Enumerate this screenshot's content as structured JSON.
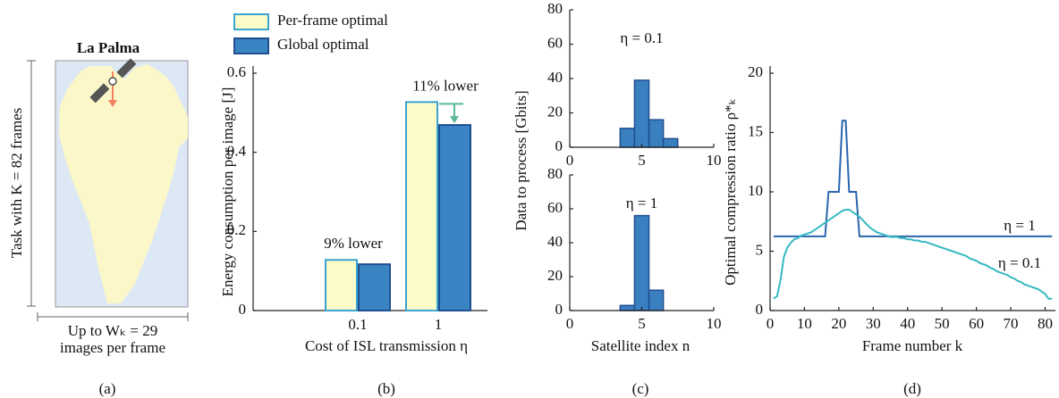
{
  "chart_data": [
    {
      "type": "map",
      "title": "La Palma",
      "y_label": "Task with K = 82 frames",
      "x_label": [
        "Up to Wₖ = 29",
        "images per frame"
      ],
      "caption": "(a)"
    },
    {
      "type": "bar",
      "categories": [
        "0.1",
        "1"
      ],
      "series": [
        {
          "name": "Per-frame optimal",
          "color": "#fdfcc8",
          "edge_color": "#3aa3cf",
          "values": [
            0.128,
            0.527
          ]
        },
        {
          "name": "Global optimal",
          "color": "#3a84c4",
          "edge_color": "#1f4f8f",
          "values": [
            0.117,
            0.469
          ]
        }
      ],
      "annotations": [
        "9% lower",
        "11% lower"
      ],
      "ylim": [
        0,
        0.6
      ],
      "yticks": [
        0,
        0.2,
        0.4,
        0.6
      ],
      "y_label": "Energy consumption per image [J]",
      "x_label": "Cost of ISL transmission η",
      "caption": "(b)"
    },
    {
      "type": "histogram",
      "color": "#3a7fc0",
      "edge_color": "#1f4f8f",
      "subplots": [
        {
          "title": "η = 0.1",
          "bins": [
            3.5,
            4.5,
            5.5,
            6.5,
            7.5
          ],
          "counts": [
            11,
            39,
            16,
            5
          ]
        },
        {
          "title": "η = 1",
          "bins": [
            3.5,
            4.5,
            5.5,
            6.5
          ],
          "counts": [
            3,
            56,
            12
          ]
        }
      ],
      "xlim": [
        0,
        10
      ],
      "xticks": [
        0,
        5,
        10
      ],
      "ylim": [
        0,
        80
      ],
      "yticks": [
        0,
        20,
        40,
        60,
        80
      ],
      "y_label": "Data to process [Gbits]",
      "x_label": "Satellite index n",
      "caption": "(c)"
    },
    {
      "type": "line",
      "x": [
        1,
        2,
        3,
        4,
        5,
        6,
        7,
        8,
        9,
        10,
        11,
        12,
        13,
        14,
        15,
        16,
        17,
        18,
        19,
        20,
        21,
        22,
        23,
        24,
        25,
        26,
        27,
        28,
        29,
        30,
        31,
        32,
        33,
        34,
        35,
        36,
        37,
        38,
        39,
        40,
        41,
        42,
        43,
        44,
        45,
        46,
        47,
        48,
        49,
        50,
        51,
        52,
        53,
        54,
        55,
        56,
        57,
        58,
        59,
        60,
        61,
        62,
        63,
        64,
        65,
        66,
        67,
        68,
        69,
        70,
        71,
        72,
        73,
        74,
        75,
        76,
        77,
        78,
        79,
        80,
        81,
        82
      ],
      "series": [
        {
          "name": "η = 1",
          "color": "#2a66ad",
          "values": [
            6.25,
            6.25,
            6.25,
            6.25,
            6.25,
            6.25,
            6.25,
            6.25,
            6.25,
            6.25,
            6.25,
            6.25,
            6.25,
            6.25,
            6.25,
            6.25,
            10,
            10,
            10,
            10,
            16,
            16,
            10,
            10,
            10,
            6.25,
            6.25,
            6.25,
            6.25,
            6.25,
            6.25,
            6.25,
            6.25,
            6.25,
            6.25,
            6.25,
            6.25,
            6.25,
            6.25,
            6.25,
            6.25,
            6.25,
            6.25,
            6.25,
            6.25,
            6.25,
            6.25,
            6.25,
            6.25,
            6.25,
            6.25,
            6.25,
            6.25,
            6.25,
            6.25,
            6.25,
            6.25,
            6.25,
            6.25,
            6.25,
            6.25,
            6.25,
            6.25,
            6.25,
            6.25,
            6.25,
            6.25,
            6.25,
            6.25,
            6.25,
            6.25,
            6.25,
            6.25,
            6.25,
            6.25,
            6.25,
            6.25,
            6.25,
            6.25,
            6.25,
            6.25,
            6.25
          ]
        },
        {
          "name": "η = 0.1",
          "color": "#35b9c2",
          "values": [
            1,
            1.2,
            2.5,
            4.5,
            5.3,
            5.7,
            6.0,
            6.1,
            6.3,
            6.4,
            6.5,
            6.6,
            6.8,
            7.0,
            7.2,
            7.4,
            7.6,
            7.8,
            8.0,
            8.2,
            8.4,
            8.5,
            8.5,
            8.3,
            8.1,
            7.9,
            7.6,
            7.3,
            7.0,
            6.8,
            6.6,
            6.5,
            6.4,
            6.3,
            6.2,
            6.2,
            6.2,
            6.1,
            6.1,
            6.0,
            6.0,
            5.9,
            5.9,
            5.8,
            5.8,
            5.7,
            5.6,
            5.5,
            5.4,
            5.3,
            5.2,
            5.1,
            5.0,
            4.9,
            4.8,
            4.7,
            4.6,
            4.4,
            4.3,
            4.2,
            4.0,
            3.9,
            3.8,
            3.6,
            3.5,
            3.3,
            3.2,
            3.1,
            3.0,
            2.8,
            2.7,
            2.5,
            2.4,
            2.2,
            2.1,
            2.0,
            1.9,
            1.8,
            1.6,
            1.4,
            1.0,
            1.0
          ]
        }
      ],
      "xlim": [
        0,
        83
      ],
      "xticks": [
        0,
        10,
        20,
        30,
        40,
        50,
        60,
        70,
        80
      ],
      "ylim": [
        0,
        20
      ],
      "yticks": [
        0,
        5,
        10,
        15,
        20
      ],
      "y_label": "Optimal compression ratio ρ*ₖ",
      "x_label": "Frame number k",
      "caption": "(d)"
    }
  ]
}
